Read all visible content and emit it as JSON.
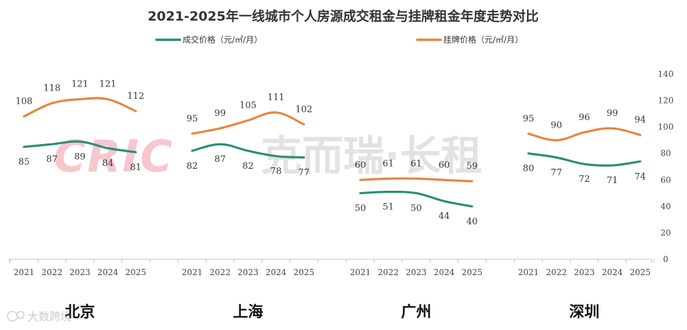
{
  "chart_data": {
    "type": "line",
    "title": "2021-2025年一线城市个人房源成交租金与挂牌租金年度走势对比",
    "legend_position": "top",
    "grid": false,
    "ylim": [
      0,
      140
    ],
    "y_ticks": [
      "0",
      "20",
      "40",
      "60",
      "80",
      "100",
      "120",
      "140"
    ],
    "years": [
      "2021",
      "2022",
      "2023",
      "2024",
      "2025"
    ],
    "series": [
      {
        "name": "成交价格（元/㎡/月）",
        "color": "#2e8b7a"
      },
      {
        "name": "挂牌价格（元/㎡/月）",
        "color": "#e8853d"
      }
    ],
    "groups": [
      {
        "city": "北京",
        "deal": [
          85,
          87,
          89,
          84,
          81
        ],
        "list": [
          108,
          118,
          121,
          121,
          112
        ]
      },
      {
        "city": "上海",
        "deal": [
          82,
          87,
          82,
          78,
          77
        ],
        "list": [
          95,
          99,
          105,
          111,
          102
        ]
      },
      {
        "city": "广州",
        "deal": [
          50,
          51,
          50,
          44,
          40
        ],
        "list": [
          60,
          61,
          61,
          60,
          59
        ]
      },
      {
        "city": "深圳",
        "deal": [
          80,
          77,
          72,
          71,
          74
        ],
        "list": [
          95,
          90,
          96,
          99,
          94
        ]
      }
    ]
  },
  "watermark": {
    "text": "克而瑞·长租",
    "latin": "CRIC"
  },
  "source_logo": {
    "text": "大数跨境"
  }
}
